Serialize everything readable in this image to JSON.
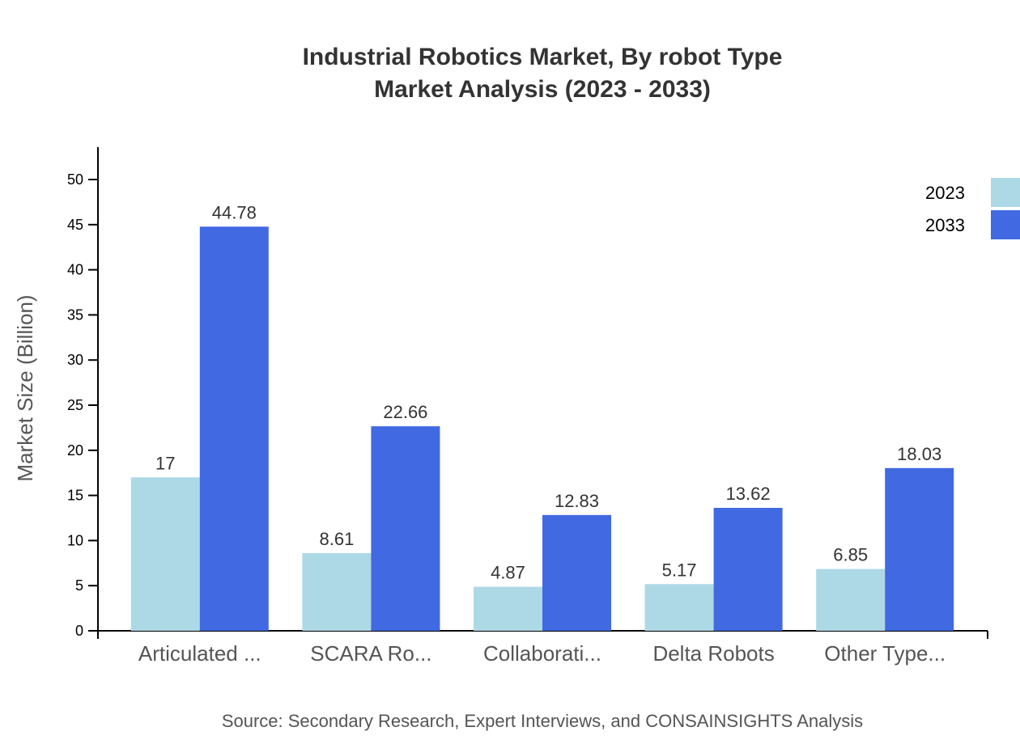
{
  "chart_data": {
    "type": "bar",
    "title": "Industrial Robotics Market, By robot Type",
    "subtitle": "Market Analysis (2023 - 2033)",
    "ylabel": "Market Size (Billion)",
    "xlabel": "",
    "ylim": [
      0,
      53.6
    ],
    "yticks": [
      0,
      5,
      10,
      15,
      20,
      25,
      30,
      35,
      40,
      45,
      50
    ],
    "grid": false,
    "legend_position": "top-right",
    "categories": [
      "Articulated ...",
      "SCARA Ro...",
      "Collaborati...",
      "Delta Robots",
      "Other Type..."
    ],
    "series": [
      {
        "name": "2023",
        "color": "#add8e6",
        "values": [
          17,
          8.61,
          4.87,
          5.17,
          6.85
        ]
      },
      {
        "name": "2033",
        "color": "#4169e1",
        "values": [
          44.78,
          22.66,
          12.83,
          13.62,
          18.03
        ]
      }
    ],
    "source": "Source: Secondary Research, Expert Interviews, and CONSAINSIGHTS Analysis"
  }
}
